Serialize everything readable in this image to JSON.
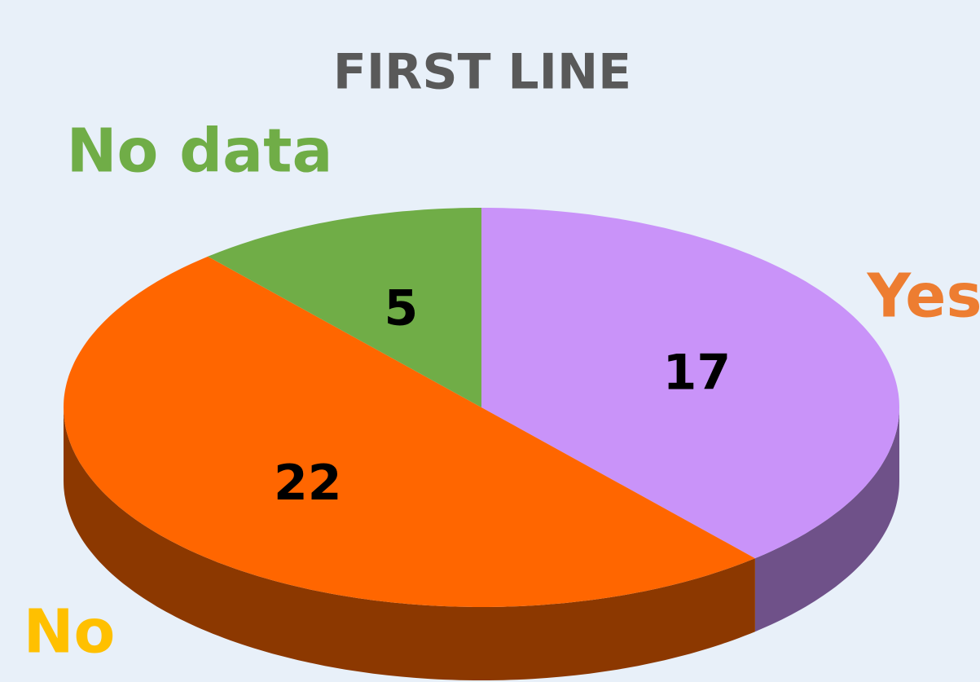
{
  "chart_data": {
    "type": "pie",
    "title": "FIRST LINE",
    "categories": [
      "Yes",
      "No",
      "No data"
    ],
    "values": [
      17,
      22,
      5
    ],
    "colors": [
      "#c993f9",
      "#ff6600",
      "#70ad47"
    ],
    "label_colors": [
      "#ed7d31",
      "#ffc000",
      "#70ad47"
    ]
  }
}
